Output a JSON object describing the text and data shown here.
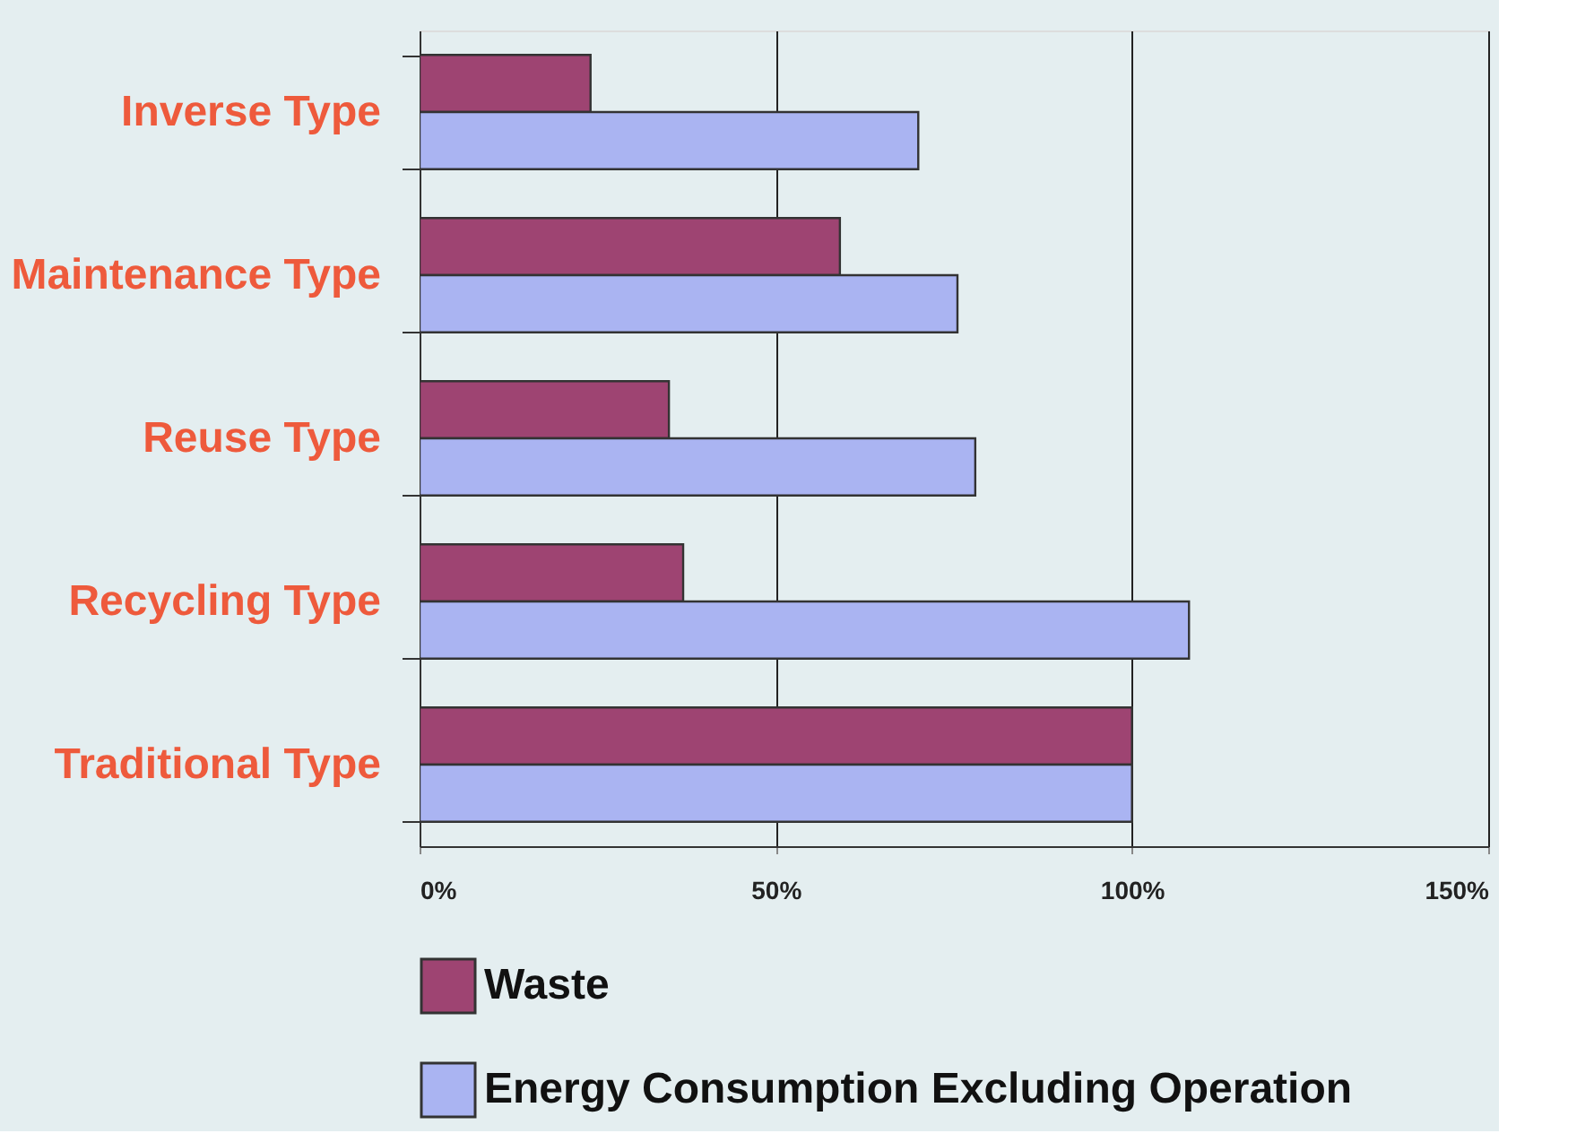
{
  "chart_data": {
    "type": "bar",
    "orientation": "horizontal",
    "categories": [
      "Inverse Type",
      "Maintenance Type",
      "Reuse Type",
      "Recycling Type",
      "Traditional Type"
    ],
    "series": [
      {
        "name": "Waste",
        "color": "#9e4472",
        "values": [
          24,
          59,
          35,
          37,
          100
        ]
      },
      {
        "name": "Energy Consumption Excluding Operation",
        "color": "#aab4f2",
        "values": [
          70,
          75.5,
          78,
          108,
          100
        ]
      }
    ],
    "xlim": [
      0,
      150
    ],
    "xticks": [
      {
        "value": 0,
        "label": "0%"
      },
      {
        "value": 50,
        "label": "50%"
      },
      {
        "value": 100,
        "label": "100%"
      },
      {
        "value": 150,
        "label": "150%"
      }
    ],
    "grid": "x",
    "legend": "bottom"
  }
}
